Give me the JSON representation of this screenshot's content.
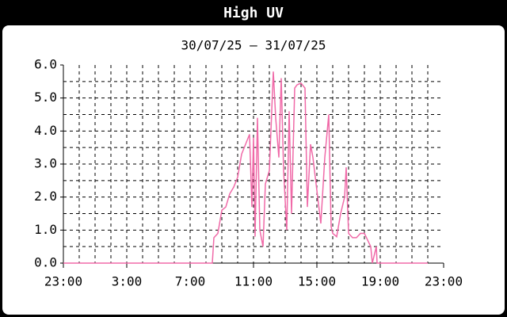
{
  "chart_data": {
    "type": "line",
    "title": "High UV",
    "subtitle": "30/07/25 – 31/07/25",
    "x": [
      0,
      9.4,
      9.5,
      9.75,
      10,
      10.25,
      10.5,
      10.75,
      11,
      11.25,
      11.5,
      11.75,
      11.9,
      12,
      12.1,
      12.25,
      12.4,
      12.6,
      12.75,
      13,
      13.25,
      13.4,
      13.6,
      13.75,
      13.9,
      14.1,
      14.25,
      14.4,
      14.6,
      14.75,
      15,
      15.25,
      15.4,
      15.6,
      15.75,
      16,
      16.25,
      16.5,
      16.75,
      16.9,
      17,
      17.25,
      17.5,
      17.75,
      17.85,
      18,
      18.25,
      18.5,
      18.75,
      19,
      19.25,
      19.4,
      19.5,
      19.75,
      19.8,
      20,
      23
    ],
    "series": [
      {
        "name": "High UV",
        "color": "#f06aa8",
        "values": [
          0,
          0,
          0.77,
          0.9,
          1.6,
          1.7,
          2.1,
          2.3,
          2.6,
          3.3,
          3.6,
          3.9,
          1.7,
          3.8,
          0.8,
          4.4,
          1.0,
          0.5,
          2.4,
          2.8,
          5.8,
          4.4,
          3.2,
          5.6,
          2.8,
          1.0,
          4.6,
          1.5,
          5.3,
          5.4,
          5.45,
          5.3,
          1.7,
          3.6,
          3.2,
          2.2,
          1.2,
          3.2,
          4.5,
          1.1,
          0.9,
          0.8,
          1.5,
          2.0,
          2.9,
          0.9,
          0.77,
          0.77,
          0.9,
          0.9,
          0.65,
          0.5,
          0,
          0.5,
          0,
          0,
          0
        ]
      }
    ],
    "xlim": [
      0,
      24
    ],
    "xticks": [
      {
        "value": 0,
        "label": "23:00"
      },
      {
        "value": 4,
        "label": "3:00"
      },
      {
        "value": 8,
        "label": "7:00"
      },
      {
        "value": 12,
        "label": "11:00"
      },
      {
        "value": 16,
        "label": "15:00"
      },
      {
        "value": 20,
        "label": "19:00"
      },
      {
        "value": 24,
        "label": "23:00"
      }
    ],
    "ylim": [
      0,
      6
    ],
    "yticks": [
      {
        "value": 0,
        "label": "0.0"
      },
      {
        "value": 1,
        "label": "1.0"
      },
      {
        "value": 2,
        "label": "2.0"
      },
      {
        "value": 3,
        "label": "3.0"
      },
      {
        "value": 4,
        "label": "4.0"
      },
      {
        "value": 5,
        "label": "5.0"
      },
      {
        "value": 6,
        "label": "6.0"
      }
    ],
    "xgrid": [
      1,
      2,
      3,
      4,
      5,
      6,
      7,
      8,
      9,
      10,
      11,
      12,
      13,
      14,
      15,
      16,
      17,
      18,
      19,
      20,
      21,
      22,
      23
    ],
    "ygrid": [
      0.5,
      1,
      1.5,
      2,
      2.5,
      3,
      3.5,
      4,
      4.5,
      5,
      5.5
    ],
    "grid": true
  }
}
